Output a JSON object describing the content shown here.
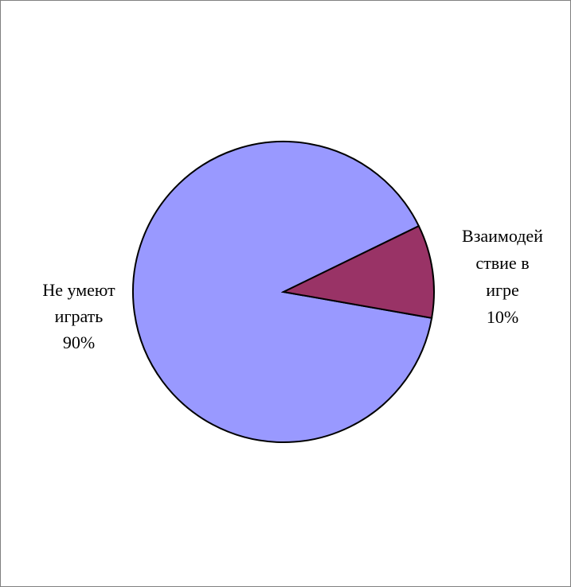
{
  "chart_data": {
    "type": "pie",
    "title": "",
    "slices": [
      {
        "label_lines": [
          "Не умеют",
          "играть"
        ],
        "percent_label": "90%",
        "value": 90,
        "color": "#9999ff"
      },
      {
        "label_lines": [
          "Взаимодей",
          "ствие в",
          "игре"
        ],
        "percent_label": "10%",
        "value": 10,
        "color": "#993366"
      }
    ],
    "start_angle_deg": 0,
    "legend": "none",
    "outline_color": "#000000"
  }
}
